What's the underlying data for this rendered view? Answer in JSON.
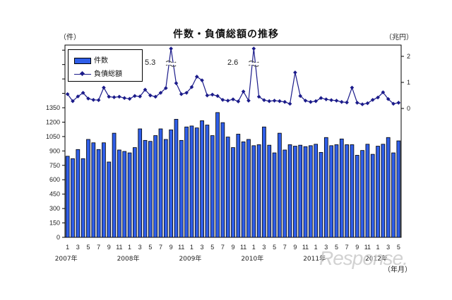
{
  "chart_data": {
    "type": "bar+line",
    "title": "件数・負債総額の推移",
    "left_unit": "（件）",
    "right_unit": "（兆円）",
    "x_unit": "（年月）",
    "x_tick_labels": [
      "1",
      "3",
      "5",
      "7",
      "9",
      "11",
      "1",
      "3",
      "5",
      "7",
      "9",
      "11",
      "1",
      "3",
      "5",
      "7",
      "9",
      "11",
      "1",
      "3",
      "5",
      "7",
      "9",
      "11",
      "1",
      "3",
      "5",
      "7",
      "9",
      "11",
      "1",
      "3",
      "5"
    ],
    "year_labels": [
      {
        "label": "2007年",
        "index": 0
      },
      {
        "label": "2008年",
        "index": 12
      },
      {
        "label": "2009年",
        "index": 24
      },
      {
        "label": "2010年",
        "index": 36
      },
      {
        "label": "2011年",
        "index": 48
      },
      {
        "label": "2012年",
        "index": 60
      }
    ],
    "left_axis": {
      "ticks": [
        0,
        150,
        300,
        450,
        600,
        750,
        900,
        1050,
        1200,
        1350
      ],
      "range": [
        0,
        1350
      ]
    },
    "right_axis": {
      "ticks": [
        0,
        1,
        2
      ],
      "range": [
        0,
        2.4
      ]
    },
    "legend": [
      {
        "name": "件数",
        "type": "bar"
      },
      {
        "name": "負債総額",
        "type": "line"
      }
    ],
    "annotations": [
      {
        "text": "5.3",
        "index": 20
      },
      {
        "text": "2.6",
        "index": 36
      }
    ],
    "series": [
      {
        "name": "件数",
        "type": "bar",
        "axis": "left",
        "color": "#2f5ee8",
        "values": [
          845,
          820,
          915,
          820,
          1020,
          985,
          915,
          985,
          785,
          1085,
          910,
          895,
          880,
          935,
          1130,
          1010,
          1000,
          1060,
          1130,
          1020,
          1120,
          1230,
          1010,
          1150,
          1160,
          1140,
          1215,
          1170,
          1060,
          1300,
          1195,
          1045,
          935,
          1075,
          995,
          1020,
          955,
          965,
          1150,
          960,
          880,
          1085,
          910,
          965,
          950,
          960,
          945,
          955,
          970,
          885,
          1040,
          955,
          965,
          1025,
          965,
          965,
          855,
          905,
          970,
          865,
          950,
          970,
          1040,
          880,
          1005
        ]
      },
      {
        "name": "負債総額",
        "type": "line",
        "axis": "right",
        "color": "#1b1b8a",
        "values": [
          0.55,
          0.28,
          0.46,
          0.6,
          0.38,
          0.33,
          0.32,
          0.8,
          0.45,
          0.43,
          0.45,
          0.4,
          0.37,
          0.48,
          0.46,
          0.72,
          0.5,
          0.45,
          0.6,
          0.78,
          5.3,
          0.97,
          0.55,
          0.6,
          0.82,
          1.22,
          1.08,
          0.5,
          0.53,
          0.48,
          0.33,
          0.3,
          0.35,
          0.27,
          0.65,
          0.3,
          2.6,
          0.45,
          0.32,
          0.28,
          0.3,
          0.28,
          0.25,
          0.18,
          1.38,
          0.48,
          0.3,
          0.25,
          0.28,
          0.4,
          0.35,
          0.32,
          0.3,
          0.25,
          0.23,
          0.8,
          0.22,
          0.16,
          0.2,
          0.33,
          0.42,
          0.62,
          0.36,
          0.18,
          0.22
        ]
      }
    ]
  }
}
